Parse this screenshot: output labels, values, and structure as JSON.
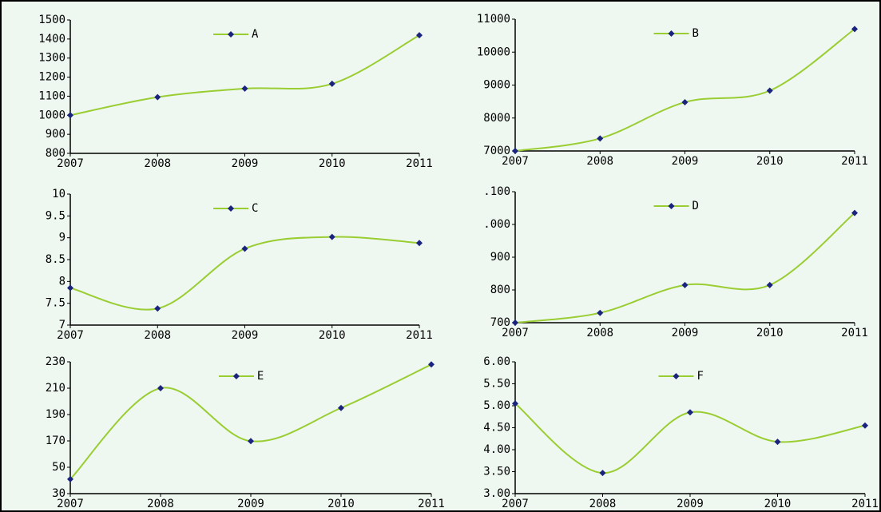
{
  "chart_data": [
    {
      "type": "line",
      "categories": [
        "2007",
        "2008",
        "2009",
        "2010",
        "2011"
      ],
      "series": [
        {
          "name": "A",
          "color": "#9acd32",
          "marker_color": "#1a237e",
          "values": [
            1000,
            1095,
            1140,
            1165,
            1420
          ]
        }
      ],
      "ylim": [
        800,
        1500
      ],
      "yticks": [
        800,
        900,
        1000,
        1100,
        1200,
        1300,
        1400,
        1500
      ]
    },
    {
      "type": "line",
      "categories": [
        "2007",
        "2008",
        "2009",
        "2010",
        "2011"
      ],
      "series": [
        {
          "name": "B",
          "color": "#9acd32",
          "marker_color": "#1a237e",
          "values": [
            7000,
            7380,
            8480,
            8830,
            10700
          ]
        }
      ],
      "ylim": [
        7000,
        11000
      ],
      "yticks": [
        7000,
        8000,
        9000,
        10000,
        11000
      ]
    },
    {
      "type": "line",
      "categories": [
        "2007",
        "2008",
        "2009",
        "2010",
        "2011"
      ],
      "series": [
        {
          "name": "C",
          "color": "#9acd32",
          "marker_color": "#1a237e",
          "values": [
            7.85,
            7.38,
            8.75,
            9.02,
            8.88
          ]
        }
      ],
      "ylim": [
        7,
        10
      ],
      "yticks": [
        7,
        7.5,
        8,
        8.5,
        9,
        9.5,
        10
      ]
    },
    {
      "type": "line",
      "categories": [
        "2007",
        "2008",
        "2009",
        "2010",
        "2011"
      ],
      "series": [
        {
          "name": "D",
          "color": "#9acd32",
          "marker_color": "#1a237e",
          "values": [
            700,
            730,
            815,
            815,
            1035
          ]
        }
      ],
      "ylim": [
        700,
        1100
      ],
      "yticks": [
        700,
        800,
        900,
        {
          "value": 1000,
          "label": ".000"
        },
        {
          "value": 1100,
          "label": ".100"
        }
      ]
    },
    {
      "type": "line",
      "categories": [
        "2007",
        "2008",
        "2009",
        "2010",
        "2011"
      ],
      "series": [
        {
          "name": "E",
          "color": "#9acd32",
          "marker_color": "#1a237e",
          "values": [
            41,
            210,
            169,
            195,
            228
          ]
        }
      ],
      "ylim": [
        30,
        230
      ],
      "yticks": [
        30,
        50,
        170,
        190,
        210,
        230
      ]
    },
    {
      "type": "line",
      "categories": [
        "2007",
        "2008",
        "2009",
        "2010",
        "2011"
      ],
      "series": [
        {
          "name": "F",
          "color": "#9acd32",
          "marker_color": "#1a237e",
          "values": [
            5.05,
            3.47,
            4.85,
            4.18,
            4.55
          ]
        }
      ],
      "ylim": [
        3,
        6
      ],
      "yticks": [
        {
          "value": 3,
          "label": "3.00"
        },
        {
          "value": 3.5,
          "label": "3.50"
        },
        {
          "value": 4,
          "label": "4.00"
        },
        {
          "value": 4.5,
          "label": "4.50"
        },
        {
          "value": 5,
          "label": "5.00"
        },
        {
          "value": 5.5,
          "label": "5.50"
        },
        {
          "value": 6,
          "label": "6.00"
        }
      ]
    }
  ]
}
